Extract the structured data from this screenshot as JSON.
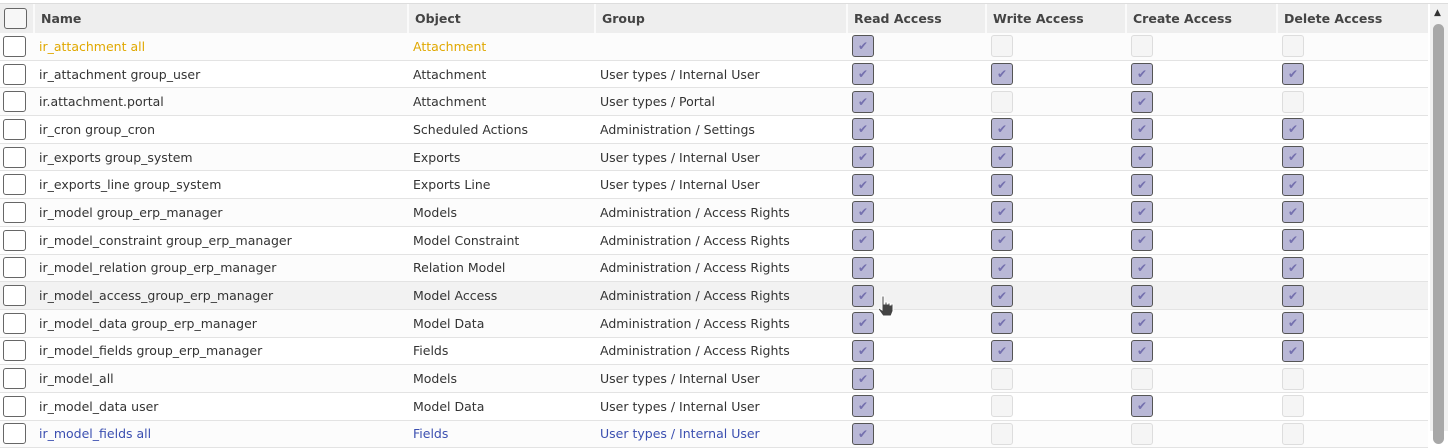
{
  "columns": [
    "Name",
    "Object",
    "Group",
    "Read Access",
    "Write Access",
    "Create Access",
    "Delete Access"
  ],
  "colors": {
    "highlight_text": "#e0a800",
    "checked_bg": "#b9b8d6",
    "check_mark": "#7470ae"
  },
  "rows": [
    {
      "name": "ir_attachment all",
      "object": "Attachment",
      "group": "",
      "access": [
        1,
        0,
        0,
        0
      ],
      "style": "note"
    },
    {
      "name": "ir_attachment group_user",
      "object": "Attachment",
      "group": "User types / Internal User",
      "access": [
        1,
        1,
        1,
        1
      ]
    },
    {
      "name": "ir.attachment.portal",
      "object": "Attachment",
      "group": "User types / Portal",
      "access": [
        1,
        0,
        1,
        0
      ]
    },
    {
      "name": "ir_cron group_cron",
      "object": "Scheduled Actions",
      "group": "Administration / Settings",
      "access": [
        1,
        1,
        1,
        1
      ]
    },
    {
      "name": "ir_exports group_system",
      "object": "Exports",
      "group": "User types / Internal User",
      "access": [
        1,
        1,
        1,
        1
      ]
    },
    {
      "name": "ir_exports_line group_system",
      "object": "Exports Line",
      "group": "User types / Internal User",
      "access": [
        1,
        1,
        1,
        1
      ]
    },
    {
      "name": "ir_model group_erp_manager",
      "object": "Models",
      "group": "Administration / Access Rights",
      "access": [
        1,
        1,
        1,
        1
      ]
    },
    {
      "name": "ir_model_constraint group_erp_manager",
      "object": "Model Constraint",
      "group": "Administration / Access Rights",
      "access": [
        1,
        1,
        1,
        1
      ]
    },
    {
      "name": "ir_model_relation group_erp_manager",
      "object": "Relation Model",
      "group": "Administration / Access Rights",
      "access": [
        1,
        1,
        1,
        1
      ]
    },
    {
      "name": "ir_model_access_group_erp_manager",
      "object": "Model Access",
      "group": "Administration / Access Rights",
      "access": [
        1,
        1,
        1,
        1
      ],
      "style": "hover"
    },
    {
      "name": "ir_model_data group_erp_manager",
      "object": "Model Data",
      "group": "Administration / Access Rights",
      "access": [
        1,
        1,
        1,
        1
      ]
    },
    {
      "name": "ir_model_fields group_erp_manager",
      "object": "Fields",
      "group": "Administration / Access Rights",
      "access": [
        1,
        1,
        1,
        1
      ]
    },
    {
      "name": "ir_model_all",
      "object": "Models",
      "group": "User types / Internal User",
      "access": [
        1,
        0,
        0,
        0
      ]
    },
    {
      "name": "ir_model_data user",
      "object": "Model Data",
      "group": "User types / Internal User",
      "access": [
        1,
        0,
        1,
        0
      ]
    },
    {
      "name": "ir_model_fields all",
      "object": "Fields",
      "group": "User types / Internal User",
      "access": [
        1,
        0,
        0,
        0
      ],
      "style": "partial"
    }
  ]
}
